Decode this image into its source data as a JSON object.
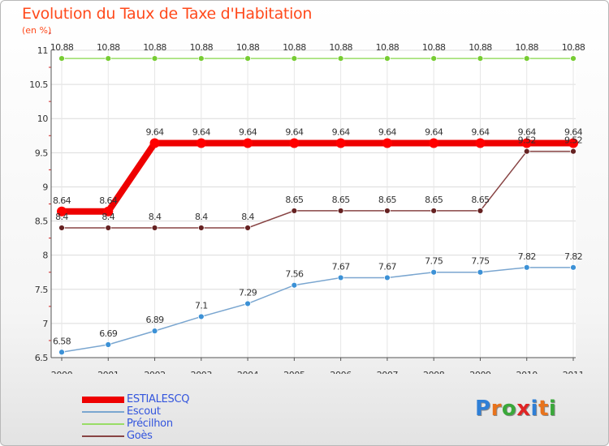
{
  "title": "Evolution du Taux de Taxe d'Habitation",
  "subtitle": "(en %)",
  "brand": {
    "name": "Proxiti",
    "letter_colors": [
      "#2f7fd6",
      "#e8731c",
      "#3aa83a",
      "#e02424",
      "#2f7fd6",
      "#e8731c",
      "#3aa83a"
    ]
  },
  "chart_data": {
    "type": "line",
    "title": "Evolution du Taux de Taxe d'Habitation",
    "ylabel": "(en %)",
    "x": [
      "2000",
      "2001",
      "2002",
      "2003",
      "2004",
      "2005",
      "2006",
      "2007",
      "2008",
      "2009",
      "2010",
      "2011"
    ],
    "ylim": [
      6.5,
      11
    ],
    "yticks": [
      "6.5",
      "7",
      "7.5",
      "8",
      "8.5",
      "9",
      "9.5",
      "10",
      "10.5",
      "11"
    ],
    "legend_position": "bottom-left",
    "series": [
      {
        "name": "ESTIALESCQ",
        "color": "#ee0000",
        "marker_color": "#ff0000",
        "values": [
          8.64,
          8.64,
          9.64,
          9.64,
          9.64,
          9.64,
          9.64,
          9.64,
          9.64,
          9.64,
          9.64,
          9.64
        ],
        "labels": [
          "8.64",
          "8.64",
          "9.64",
          "9.64",
          "9.64",
          "9.64",
          "9.64",
          "9.64",
          "9.64",
          "9.64",
          "9.64",
          "9.64"
        ]
      },
      {
        "name": "Escout",
        "color": "#7aa6d0",
        "marker_color": "#3c91d6",
        "values": [
          6.58,
          6.69,
          6.89,
          7.1,
          7.29,
          7.56,
          7.67,
          7.67,
          7.75,
          7.75,
          7.82,
          7.82
        ],
        "labels": [
          "6.58",
          "6.69",
          "6.89",
          "7.1",
          "7.29",
          "7.56",
          "7.67",
          "7.67",
          "7.75",
          "7.75",
          "7.82",
          "7.82"
        ]
      },
      {
        "name": "Précilhon",
        "color": "#99dd66",
        "marker_color": "#77cc33",
        "values": [
          10.88,
          10.88,
          10.88,
          10.88,
          10.88,
          10.88,
          10.88,
          10.88,
          10.88,
          10.88,
          10.88,
          10.88
        ],
        "labels": [
          "10.88",
          "10.88",
          "10.88",
          "10.88",
          "10.88",
          "10.88",
          "10.88",
          "10.88",
          "10.88",
          "10.88",
          "10.88",
          "10.88"
        ]
      },
      {
        "name": "Goès",
        "color": "#884444",
        "marker_color": "#662222",
        "values": [
          8.4,
          8.4,
          8.4,
          8.4,
          8.4,
          8.65,
          8.65,
          8.65,
          8.65,
          8.65,
          9.52,
          9.52
        ],
        "labels": [
          "8.4",
          "8.4",
          "8.4",
          "8.4",
          "8.4",
          "8.65",
          "8.65",
          "8.65",
          "8.65",
          "8.65",
          "9.52",
          "9.52"
        ]
      }
    ]
  }
}
